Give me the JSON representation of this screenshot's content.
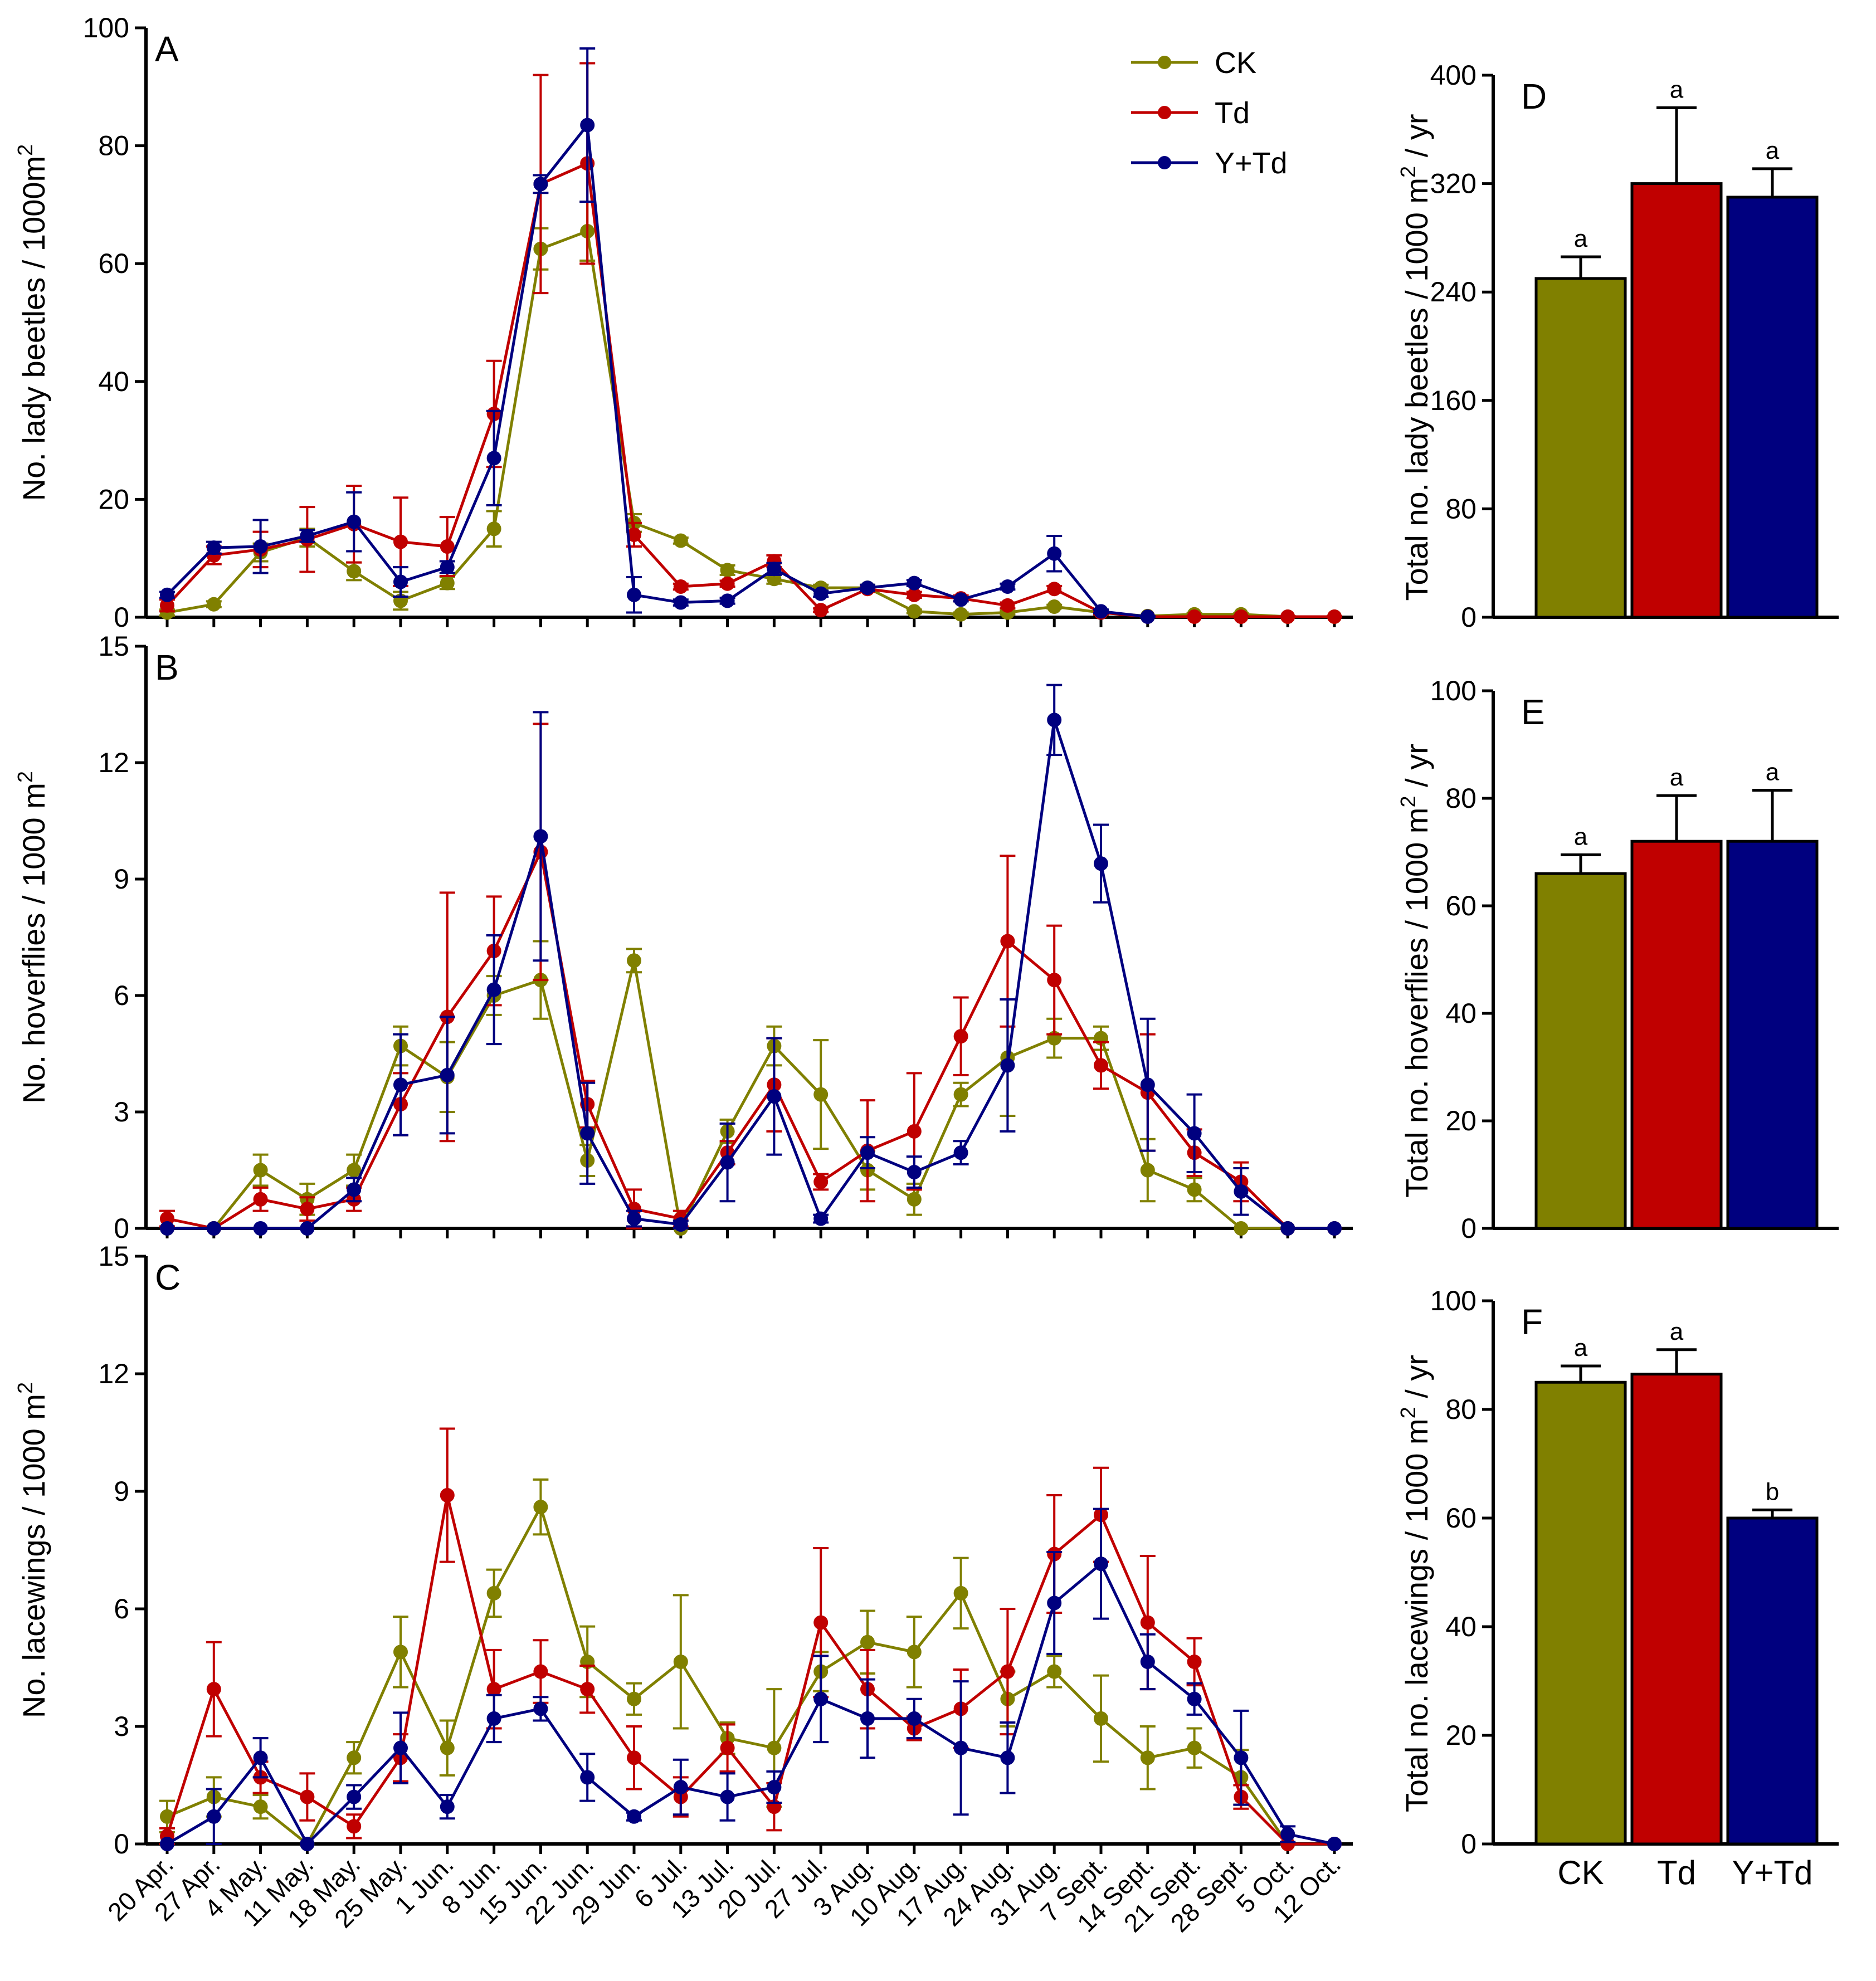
{
  "chart_data": {
    "type": "line+bar",
    "series_names": [
      "CK",
      "Td",
      "Y+Td"
    ],
    "colors": {
      "CK": "#808000",
      "Td": "#c00000",
      "Y+Td": "#00007f"
    },
    "legend": {
      "position": "top-right of panel A",
      "entries": [
        "CK",
        "Td",
        "Y+Td"
      ]
    },
    "x_dates": [
      "20 Apr.",
      "27 Apr.",
      "4 May.",
      "11 May.",
      "18 May.",
      "25 May.",
      "1 Jun.",
      "8 Jun.",
      "15 Jun.",
      "22 Jun.",
      "29 Jun.",
      "6 Jul.",
      "13 Jul.",
      "20 Jul.",
      "27 Jul.",
      "3 Aug.",
      "10 Aug.",
      "17 Aug.",
      "24 Aug.",
      "31 Aug.",
      "7 Sept.",
      "14 Sept.",
      "21 Sept.",
      "28 Sept.",
      "5 Oct.",
      "12 Oct."
    ],
    "line_panels": [
      {
        "letter": "A",
        "ylabel": "No. lady beetles / 1000m",
        "ylabel_sup": "2",
        "ylim": [
          0,
          100
        ],
        "yticks": [
          "0",
          "20",
          "40",
          "60",
          "80",
          "100"
        ],
        "series": [
          {
            "name": "CK",
            "x_idx": [
              0,
              1,
              2,
              3,
              4,
              5,
              6,
              7,
              8,
              9,
              10,
              11,
              12,
              13,
              14,
              15,
              16,
              17,
              18,
              19,
              20,
              21,
              22,
              23,
              24,
              25
            ],
            "values": [
              0.8,
              2.2,
              11,
              13.5,
              7.8,
              2.8,
              5.8,
              15,
              62.5,
              65.5,
              16,
              13,
              8,
              6.5,
              5,
              5,
              1,
              0.5,
              0.8,
              1.8,
              0.8,
              0.2,
              0.5,
              0.5,
              0.1,
              0.1
            ],
            "errors": [
              0.5,
              0.5,
              1.5,
              1.5,
              1.5,
              1.5,
              1,
              3,
              3.5,
              5,
              1.5,
              0.5,
              0.8,
              0.8,
              0.5,
              0.5,
              0.3,
              0.3,
              0.3,
              0.3,
              0.3,
              0.1,
              0.2,
              0.2,
              0.1,
              0.1
            ]
          },
          {
            "name": "Td",
            "x_idx": [
              0,
              1,
              2,
              3,
              4,
              5,
              6,
              7,
              8,
              9,
              10,
              11,
              12,
              13,
              14,
              15,
              16,
              17,
              18,
              19,
              20,
              21,
              22,
              23,
              24,
              25
            ],
            "values": [
              2,
              10.5,
              11.5,
              13.2,
              15.8,
              12.8,
              12,
              34.5,
              73.5,
              77,
              14,
              5.2,
              5.7,
              9.5,
              1.2,
              4.8,
              3.8,
              3.2,
              2,
              4.8,
              0.8,
              0.1,
              0.1,
              0.1,
              0.1,
              0.1
            ],
            "errors": [
              1,
              1.5,
              3,
              5.5,
              6.5,
              7.5,
              5,
              9,
              18.5,
              17,
              2,
              0.5,
              0.5,
              1,
              0.3,
              0.5,
              0.5,
              0.5,
              0.5,
              0.5,
              0.3,
              0.1,
              0.1,
              0.1,
              0.1,
              0.1
            ],
            "dash_last": true
          },
          {
            "name": "Y+Td",
            "x_idx": [
              0,
              1,
              2,
              3,
              4,
              5,
              6,
              7,
              8,
              9,
              10,
              11,
              12,
              13,
              14,
              15,
              16,
              17,
              18,
              19,
              20,
              21
            ],
            "values": [
              3.8,
              11.8,
              12,
              13.8,
              16.2,
              6,
              8.5,
              27,
              73.5,
              83.5,
              3.8,
              2.5,
              2.8,
              8.2,
              4,
              5,
              5.8,
              3,
              5.2,
              10.8,
              1,
              0.1
            ],
            "errors": [
              0.5,
              1,
              4.5,
              1,
              5,
              2.5,
              1,
              8,
              1.5,
              13,
              3,
              0.5,
              0.5,
              1,
              0.5,
              0.5,
              0.5,
              0.3,
              0.5,
              3,
              0.3,
              0.1
            ]
          }
        ]
      },
      {
        "letter": "B",
        "ylabel": "No. hoverflies / 1000 m",
        "ylabel_sup": "2",
        "ylim": [
          0,
          15
        ],
        "yticks": [
          "0",
          "3",
          "6",
          "9",
          "12",
          "15"
        ],
        "series": [
          {
            "name": "CK",
            "x_idx": [
              0,
              1,
              2,
              3,
              4,
              5,
              6,
              7,
              8,
              9,
              10,
              11,
              12,
              13,
              14,
              15,
              16,
              17,
              18,
              19,
              20,
              21,
              22,
              23,
              24,
              25
            ],
            "values": [
              0,
              0,
              1.5,
              0.75,
              1.5,
              4.7,
              3.9,
              6,
              6.4,
              1.75,
              6.9,
              0,
              2.5,
              4.7,
              3.45,
              1.5,
              0.75,
              3.45,
              4.4,
              4.9,
              4.9,
              1.5,
              1,
              0,
              0,
              0
            ],
            "errors": [
              0,
              0,
              0.4,
              0.4,
              0.4,
              0.5,
              0.9,
              0.5,
              1,
              0.4,
              0.3,
              0,
              0.3,
              0.5,
              1.4,
              0.5,
              0.4,
              0.3,
              1.5,
              0.5,
              0.3,
              0.8,
              0.3,
              0,
              0,
              0
            ]
          },
          {
            "name": "Td",
            "x_idx": [
              0,
              1,
              2,
              3,
              4,
              5,
              6,
              7,
              8,
              9,
              10,
              11,
              12,
              13,
              14,
              15,
              16,
              17,
              18,
              19,
              20,
              21,
              22,
              23,
              24,
              25
            ],
            "values": [
              0.25,
              0,
              0.75,
              0.5,
              0.75,
              3.2,
              5.45,
              7.15,
              9.7,
              3.2,
              0.5,
              0.25,
              1.95,
              3.7,
              1.2,
              2,
              2.5,
              4.95,
              7.4,
              6.4,
              4.2,
              3.5,
              1.95,
              1.2,
              0,
              0
            ],
            "errors": [
              0.2,
              0,
              0.3,
              0.3,
              0.3,
              0.8,
              3.2,
              1.4,
              3.3,
              0.6,
              0.5,
              0.2,
              0.3,
              1.2,
              0.2,
              1.3,
              1.5,
              1,
              2.2,
              1.4,
              0.6,
              1.5,
              0.6,
              0.5,
              0,
              0
            ]
          },
          {
            "name": "Y+Td",
            "x_idx": [
              0,
              1,
              2,
              3,
              4,
              5,
              6,
              7,
              8,
              9,
              10,
              11,
              12,
              13,
              14,
              15,
              16,
              17,
              18,
              19,
              20,
              21,
              22,
              23,
              24,
              25
            ],
            "values": [
              0,
              0,
              0,
              0,
              1,
              3.7,
              3.95,
              6.15,
              10.1,
              2.45,
              0.25,
              0.1,
              1.7,
              3.4,
              0.25,
              1.95,
              1.45,
              1.95,
              4.2,
              13.1,
              9.4,
              3.7,
              2.45,
              0.95,
              0,
              0
            ],
            "errors": [
              0,
              0,
              0,
              0,
              0.3,
              1.3,
              1.5,
              1.4,
              3.2,
              1.3,
              0.2,
              0.1,
              1,
              1.5,
              0.1,
              0.4,
              0.4,
              0.3,
              1.7,
              0.9,
              1,
              1.7,
              1,
              0.6,
              0,
              0
            ]
          }
        ]
      },
      {
        "letter": "C",
        "ylabel": "No. lacewings / 1000 m",
        "ylabel_sup": "2",
        "ylim": [
          0,
          15
        ],
        "yticks": [
          "0",
          "3",
          "6",
          "9",
          "12",
          "15"
        ],
        "series": [
          {
            "name": "CK",
            "x_idx": [
              0,
              1,
              2,
              3,
              4,
              5,
              6,
              7,
              8,
              9,
              10,
              11,
              12,
              13,
              14,
              15,
              16,
              17,
              18,
              19,
              20,
              21,
              22,
              23,
              24,
              25
            ],
            "values": [
              0.7,
              1.2,
              0.95,
              0,
              2.2,
              4.9,
              2.45,
              6.4,
              8.6,
              4.65,
              3.7,
              4.65,
              2.7,
              2.45,
              4.4,
              5.15,
              4.9,
              6.4,
              3.7,
              4.4,
              3.2,
              2.2,
              2.45,
              1.7,
              0,
              0
            ],
            "errors": [
              0.4,
              0.5,
              0.3,
              0,
              0.4,
              0.9,
              0.7,
              0.6,
              0.7,
              0.9,
              0.4,
              1.7,
              0.4,
              1.5,
              0.5,
              0.8,
              0.9,
              0.9,
              0.7,
              0.4,
              1.1,
              0.8,
              0.5,
              0.7,
              0,
              0
            ]
          },
          {
            "name": "Td",
            "x_idx": [
              0,
              1,
              2,
              3,
              4,
              5,
              6,
              7,
              8,
              9,
              10,
              11,
              12,
              13,
              14,
              15,
              16,
              17,
              18,
              19,
              20,
              21,
              22,
              23,
              24,
              25
            ],
            "values": [
              0.2,
              3.95,
              1.7,
              1.2,
              0.45,
              2.2,
              8.9,
              3.95,
              4.4,
              3.95,
              2.2,
              1.2,
              2.45,
              0.95,
              5.65,
              3.95,
              2.95,
              3.45,
              4.4,
              7.4,
              8.4,
              5.65,
              4.65,
              1.2,
              0,
              0
            ],
            "errors": [
              0.2,
              1.2,
              0.4,
              0.6,
              0.3,
              0.6,
              1.7,
              1,
              0.8,
              0.6,
              0.8,
              0.5,
              0.6,
              0.6,
              1.9,
              1,
              0.3,
              1,
              1.6,
              1.5,
              1.2,
              1.7,
              0.6,
              0.3,
              0,
              0
            ]
          },
          {
            "name": "Y+Td",
            "x_idx": [
              0,
              1,
              2,
              3,
              4,
              5,
              6,
              7,
              8,
              9,
              10,
              11,
              12,
              13,
              14,
              15,
              16,
              17,
              18,
              19,
              20,
              21,
              22,
              23,
              24,
              25
            ],
            "values": [
              0,
              0.7,
              2.2,
              0,
              1.2,
              2.45,
              0.95,
              3.2,
              3.45,
              1.7,
              0.7,
              1.45,
              1.2,
              1.45,
              3.7,
              3.2,
              3.2,
              2.45,
              2.2,
              6.15,
              7.15,
              4.65,
              3.7,
              2.2,
              0.25,
              0
            ],
            "errors": [
              0,
              0.7,
              0.5,
              0,
              0.3,
              0.9,
              0.3,
              0.6,
              0.3,
              0.6,
              0.1,
              0.7,
              0.6,
              0.4,
              1.1,
              1,
              0.5,
              1.7,
              0.9,
              1.3,
              1.4,
              0.7,
              0.4,
              1.2,
              0.2,
              0
            ]
          }
        ]
      }
    ],
    "bar_panels": [
      {
        "letter": "D",
        "ylabel": "Total no. lady beetles / 1000 m",
        "ylabel_sup": "2",
        "ylabel_tail": " / yr",
        "ylim": [
          0,
          400
        ],
        "yticks": [
          "0",
          "80",
          "160",
          "240",
          "320",
          "400"
        ],
        "values": [
          250,
          320,
          310
        ],
        "errors": [
          16,
          56,
          21
        ],
        "sig": [
          "a",
          "a",
          "a"
        ]
      },
      {
        "letter": "E",
        "ylabel": "Total no. hoverflies / 1000 m",
        "ylabel_sup": "2",
        "ylabel_tail": " / yr",
        "ylim": [
          0,
          100
        ],
        "yticks": [
          "0",
          "20",
          "40",
          "60",
          "80",
          "100"
        ],
        "values": [
          66,
          72,
          72
        ],
        "errors": [
          3.5,
          8.5,
          9.5
        ],
        "sig": [
          "a",
          "a",
          "a"
        ]
      },
      {
        "letter": "F",
        "ylabel": "Total no. lacewings / 1000 m",
        "ylabel_sup": "2",
        "ylabel_tail": " / yr",
        "ylim": [
          0,
          100
        ],
        "yticks": [
          "0",
          "20",
          "40",
          "60",
          "80",
          "100"
        ],
        "values": [
          85,
          86.5,
          60
        ],
        "errors": [
          3,
          4.5,
          1.5
        ],
        "sig": [
          "a",
          "a",
          "b"
        ]
      }
    ],
    "bar_categories": [
      "CK",
      "Td",
      "Y+Td"
    ]
  }
}
